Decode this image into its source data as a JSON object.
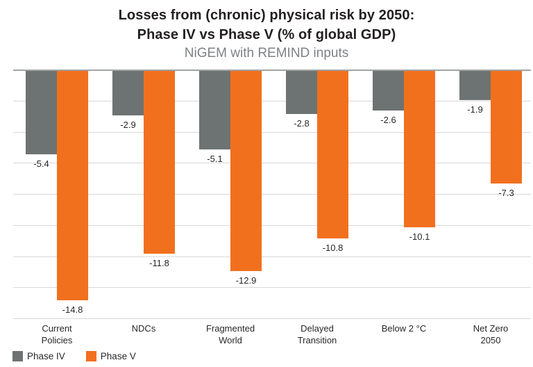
{
  "title": {
    "line1": "Losses from (chronic) physical risk by 2050:",
    "line2": "Phase IV vs Phase V (% of global GDP)",
    "subtitle": "NiGEM with REMIND inputs"
  },
  "legend": {
    "items": [
      {
        "label": "Phase IV",
        "color": "#6d7372"
      },
      {
        "label": "Phase V",
        "color": "#f1701e"
      }
    ]
  },
  "colors": {
    "phase_iv": "#6d7372",
    "phase_v": "#f1701e",
    "gridline": "#d8d8d8",
    "zero_line": "#a0a4a4",
    "title_text": "#231f20",
    "subtitle_text": "#7d8285"
  },
  "chart_data": {
    "type": "bar",
    "title": "Losses from (chronic) physical risk by 2050: Phase IV vs Phase V (% of global GDP)",
    "subtitle": "NiGEM with REMIND inputs",
    "categories": [
      "Current Policies",
      "NDCs",
      "Fragmented World",
      "Delayed Transition",
      "Below 2 °C",
      "Net Zero 2050"
    ],
    "categories_lines": [
      [
        "Current",
        "Policies"
      ],
      [
        "NDCs"
      ],
      [
        "Fragmented",
        "World"
      ],
      [
        "Delayed",
        "Transition"
      ],
      [
        "Below 2 °C"
      ],
      [
        "Net Zero",
        "2050"
      ]
    ],
    "series": [
      {
        "name": "Phase IV",
        "color": "#6d7372",
        "values": [
          -5.4,
          -2.9,
          -5.1,
          -2.8,
          -2.6,
          -1.9
        ]
      },
      {
        "name": "Phase V",
        "color": "#f1701e",
        "values": [
          -14.8,
          -11.8,
          -12.9,
          -10.8,
          -10.1,
          -7.3
        ]
      }
    ],
    "ylim": [
      -16,
      0
    ],
    "gridline_step": 2,
    "grid": true,
    "y_axis_labels": false,
    "value_labels": true,
    "legend_position": "bottom-left"
  }
}
